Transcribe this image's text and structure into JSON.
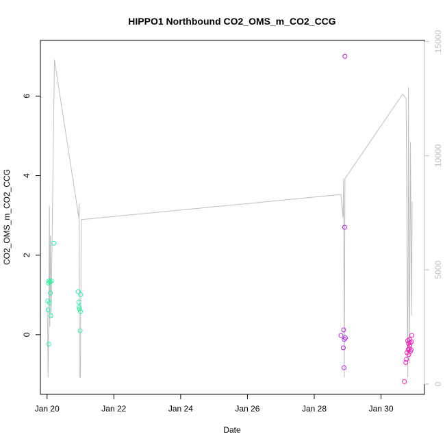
{
  "chart_data": {
    "type": "scatter",
    "title": "HIPPO1 Northbound CO2_OMS_m_CO2_CCG",
    "xlabel": "Date",
    "ylabel": "CO2_OMS_m_CO2_CCG",
    "x_ticks": [
      {
        "value": 20,
        "label": "Jan 20"
      },
      {
        "value": 22,
        "label": "Jan 22"
      },
      {
        "value": 24,
        "label": "Jan 24"
      },
      {
        "value": 26,
        "label": "Jan 26"
      },
      {
        "value": 28,
        "label": "Jan 28"
      },
      {
        "value": 30,
        "label": "Jan 30"
      }
    ],
    "xlim": [
      19.8,
      31.3
    ],
    "ylim": [
      -1.5,
      7.4
    ],
    "y_ticks": [
      0,
      2,
      4,
      6
    ],
    "y2_ticks": [
      0,
      5000,
      10000,
      15000
    ],
    "y2lim": [
      -450,
      15050
    ],
    "y2_color": "#bebebe",
    "grid": false,
    "series": [
      {
        "color": "#27f2a0",
        "points": [
          {
            "x": 20.02,
            "y": 0.85
          },
          {
            "x": 20.03,
            "y": 0.62
          },
          {
            "x": 20.04,
            "y": 1.3
          },
          {
            "x": 20.05,
            "y": -0.24
          },
          {
            "x": 20.06,
            "y": 1.35
          },
          {
            "x": 20.07,
            "y": 0.8
          },
          {
            "x": 20.09,
            "y": 1.33
          },
          {
            "x": 20.1,
            "y": 1.05
          },
          {
            "x": 20.11,
            "y": 0.48
          },
          {
            "x": 20.13,
            "y": 1.35
          },
          {
            "x": 20.2,
            "y": 2.3
          },
          {
            "x": 20.93,
            "y": 1.08
          },
          {
            "x": 20.95,
            "y": 0.82
          },
          {
            "x": 20.96,
            "y": 0.7
          },
          {
            "x": 20.97,
            "y": 0.65
          },
          {
            "x": 20.99,
            "y": 0.1
          },
          {
            "x": 21.0,
            "y": 0.58
          },
          {
            "x": 21.01,
            "y": 1.01
          }
        ]
      },
      {
        "color": "#b21de0",
        "points": [
          {
            "x": 28.8,
            "y": -0.02
          },
          {
            "x": 28.87,
            "y": -0.33
          },
          {
            "x": 28.88,
            "y": 0.12
          },
          {
            "x": 28.89,
            "y": -0.83
          },
          {
            "x": 28.9,
            "y": -0.12
          },
          {
            "x": 28.91,
            "y": 2.7
          },
          {
            "x": 28.92,
            "y": 7.0
          },
          {
            "x": 28.93,
            "y": -0.08
          }
        ]
      },
      {
        "color": "#ea1ab4",
        "points": [
          {
            "x": 30.7,
            "y": -1.18
          },
          {
            "x": 30.74,
            "y": -0.7
          },
          {
            "x": 30.76,
            "y": -0.62
          },
          {
            "x": 30.78,
            "y": -0.45
          },
          {
            "x": 30.8,
            "y": -0.15
          },
          {
            "x": 30.81,
            "y": -0.38
          },
          {
            "x": 30.82,
            "y": -0.22
          },
          {
            "x": 30.83,
            "y": -0.5
          },
          {
            "x": 30.84,
            "y": -0.35
          },
          {
            "x": 30.85,
            "y": -0.12
          },
          {
            "x": 30.86,
            "y": -0.28
          },
          {
            "x": 30.87,
            "y": -0.2
          },
          {
            "x": 30.88,
            "y": -0.42
          },
          {
            "x": 30.9,
            "y": -0.38
          },
          {
            "x": 30.91,
            "y": -0.18
          },
          {
            "x": 30.92,
            "y": -0.02
          }
        ]
      }
    ],
    "secondary_line": {
      "color": "#bebebe",
      "points": [
        {
          "x": 20.0,
          "y": 3400
        },
        {
          "x": 20.02,
          "y": 2300
        },
        {
          "x": 20.03,
          "y": 300
        },
        {
          "x": 20.05,
          "y": 2600
        },
        {
          "x": 20.07,
          "y": 7800
        },
        {
          "x": 20.08,
          "y": 2500
        },
        {
          "x": 20.1,
          "y": 6500
        },
        {
          "x": 20.12,
          "y": 2900
        },
        {
          "x": 20.22,
          "y": 14200
        },
        {
          "x": 20.95,
          "y": 7300
        },
        {
          "x": 20.96,
          "y": 7900
        },
        {
          "x": 20.97,
          "y": 300
        },
        {
          "x": 21.0,
          "y": 300
        },
        {
          "x": 21.02,
          "y": 7200
        },
        {
          "x": 28.8,
          "y": 8300
        },
        {
          "x": 28.86,
          "y": 7300
        },
        {
          "x": 28.88,
          "y": 9000
        },
        {
          "x": 28.9,
          "y": 300
        },
        {
          "x": 28.92,
          "y": 9000
        },
        {
          "x": 30.65,
          "y": 12700
        },
        {
          "x": 30.75,
          "y": 12500
        },
        {
          "x": 30.8,
          "y": 300
        },
        {
          "x": 30.82,
          "y": 13000
        },
        {
          "x": 30.85,
          "y": 900
        },
        {
          "x": 30.88,
          "y": 10600
        },
        {
          "x": 30.91,
          "y": 3000
        },
        {
          "x": 30.93,
          "y": 8000
        }
      ]
    }
  }
}
